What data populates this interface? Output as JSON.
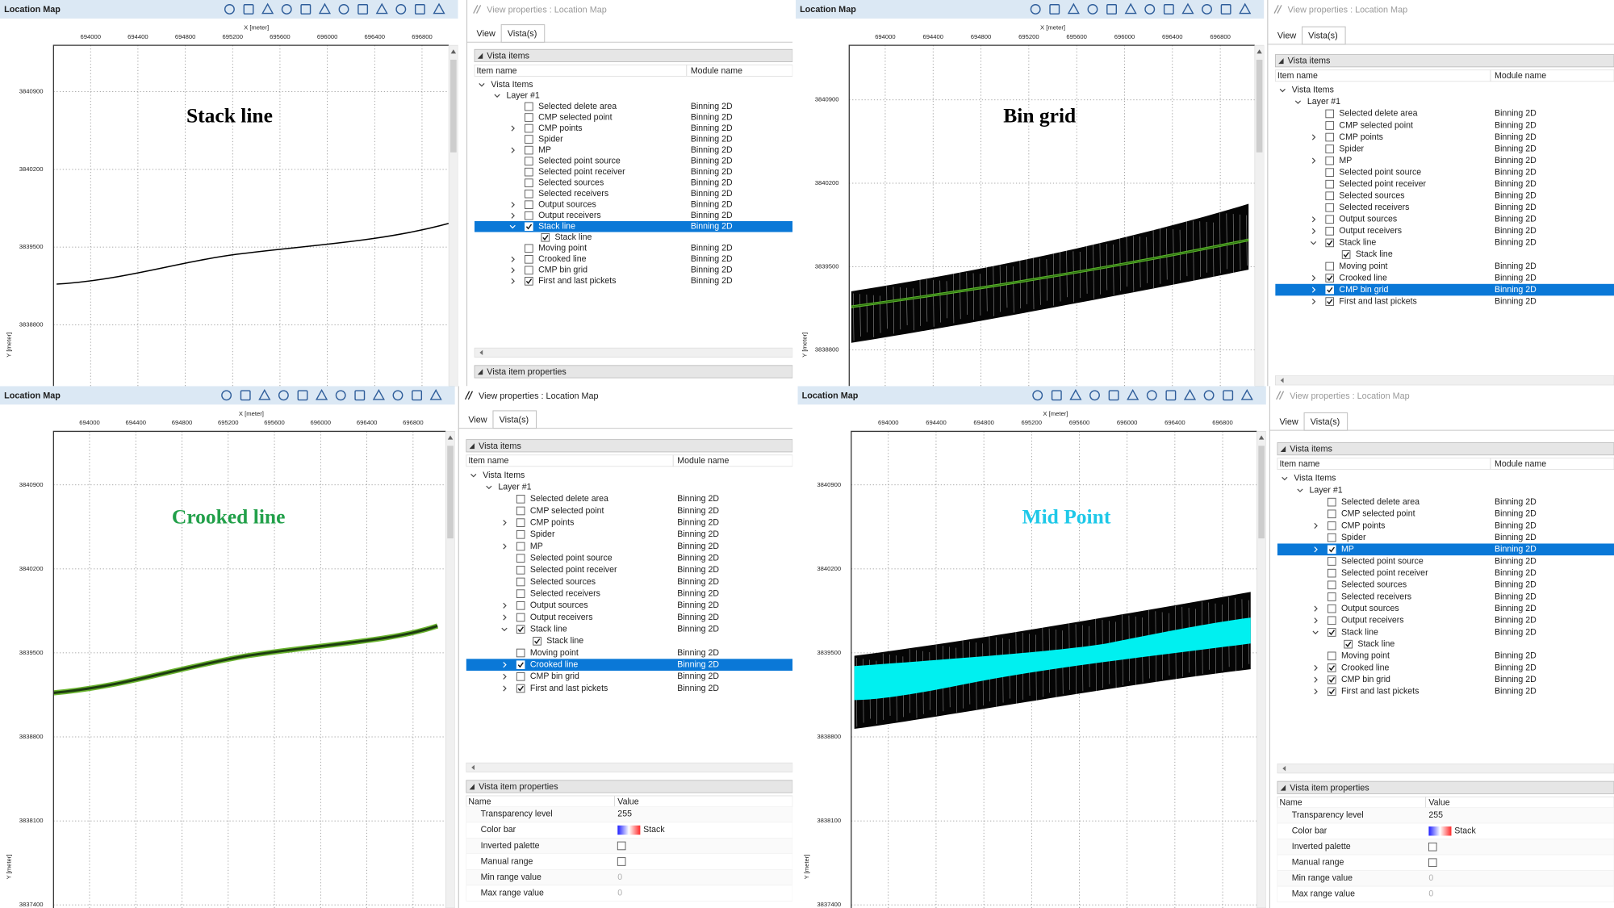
{
  "panels": [
    {
      "map": {
        "title": "Location Map",
        "x_label": "X [meter]",
        "y_label": "Y [meter]",
        "x_ticks": [
          694000,
          694400,
          694800,
          695200,
          695600,
          696000,
          696400,
          696800
        ],
        "y_ticks": [
          3840900,
          3840200,
          3839500,
          3838800
        ],
        "overlay_text": "Stack line",
        "overlay_color": "#000000"
      },
      "properties": {
        "title": "View properties : Location Map",
        "active": false,
        "tabs": [
          "View",
          "Vista(s)"
        ],
        "active_tab": 1,
        "section": "Vista items",
        "columns": [
          "Item name",
          "Module name"
        ],
        "tree": [
          {
            "name": "Vista Items",
            "level": 0,
            "expander": "open"
          },
          {
            "name": "Layer #1",
            "level": 1,
            "expander": "open"
          },
          {
            "name": "Selected delete area",
            "module": "Binning 2D",
            "level": 2,
            "checked": false
          },
          {
            "name": "CMP selected point",
            "module": "Binning 2D",
            "level": 2,
            "checked": false
          },
          {
            "name": "CMP points",
            "module": "Binning 2D",
            "level": 2,
            "checked": false,
            "expander": "closed"
          },
          {
            "name": "Spider",
            "module": "Binning 2D",
            "level": 2,
            "checked": false
          },
          {
            "name": "MP",
            "module": "Binning 2D",
            "level": 2,
            "checked": false,
            "expander": "closed"
          },
          {
            "name": "Selected point source",
            "module": "Binning 2D",
            "level": 2,
            "checked": false
          },
          {
            "name": "Selected point receiver",
            "module": "Binning 2D",
            "level": 2,
            "checked": false
          },
          {
            "name": "Selected sources",
            "module": "Binning 2D",
            "level": 2,
            "checked": false
          },
          {
            "name": "Selected receivers",
            "module": "Binning 2D",
            "level": 2,
            "checked": false
          },
          {
            "name": "Output sources",
            "module": "Binning 2D",
            "level": 2,
            "checked": false,
            "expander": "closed"
          },
          {
            "name": "Output receivers",
            "module": "Binning 2D",
            "level": 2,
            "checked": false,
            "expander": "closed"
          },
          {
            "name": "Stack line",
            "module": "Binning 2D",
            "level": 2,
            "checked": true,
            "expander": "open",
            "selected": true
          },
          {
            "name": "Stack line",
            "level": 3,
            "checked": true
          },
          {
            "name": "Moving point",
            "module": "Binning 2D",
            "level": 2,
            "checked": false
          },
          {
            "name": "Crooked line",
            "module": "Binning 2D",
            "level": 2,
            "checked": false,
            "expander": "closed"
          },
          {
            "name": "CMP bin grid",
            "module": "Binning 2D",
            "level": 2,
            "checked": false,
            "expander": "closed"
          },
          {
            "name": "First and last pickets",
            "module": "Binning 2D",
            "level": 2,
            "checked": true,
            "expander": "closed"
          }
        ],
        "item_section": "Vista item properties"
      }
    },
    {
      "map": {
        "title": "Location Map",
        "x_label": "X [meter]",
        "y_label": "Y [meter]",
        "x_ticks": [
          694000,
          694400,
          694800,
          695200,
          695600,
          696000,
          696400,
          696800
        ],
        "y_ticks": [
          3840900,
          3840200,
          3839500,
          3838800
        ],
        "overlay_text": "Bin grid",
        "overlay_color": "#000000"
      },
      "properties": {
        "title": "View properties : Location Map",
        "active": false,
        "tabs": [
          "View",
          "Vista(s)"
        ],
        "active_tab": 1,
        "section": "Vista items",
        "columns": [
          "Item name",
          "Module name"
        ],
        "tree": [
          {
            "name": "Vista Items",
            "level": 0,
            "expander": "open"
          },
          {
            "name": "Layer #1",
            "level": 1,
            "expander": "open"
          },
          {
            "name": "Selected delete area",
            "module": "Binning 2D",
            "level": 2,
            "checked": false
          },
          {
            "name": "CMP selected point",
            "module": "Binning 2D",
            "level": 2,
            "checked": false
          },
          {
            "name": "CMP points",
            "module": "Binning 2D",
            "level": 2,
            "checked": false,
            "expander": "closed"
          },
          {
            "name": "Spider",
            "module": "Binning 2D",
            "level": 2,
            "checked": false
          },
          {
            "name": "MP",
            "module": "Binning 2D",
            "level": 2,
            "checked": false,
            "expander": "closed"
          },
          {
            "name": "Selected point source",
            "module": "Binning 2D",
            "level": 2,
            "checked": false
          },
          {
            "name": "Selected point receiver",
            "module": "Binning 2D",
            "level": 2,
            "checked": false
          },
          {
            "name": "Selected sources",
            "module": "Binning 2D",
            "level": 2,
            "checked": false
          },
          {
            "name": "Selected receivers",
            "module": "Binning 2D",
            "level": 2,
            "checked": false
          },
          {
            "name": "Output sources",
            "module": "Binning 2D",
            "level": 2,
            "checked": false,
            "expander": "closed"
          },
          {
            "name": "Output receivers",
            "module": "Binning 2D",
            "level": 2,
            "checked": false,
            "expander": "closed"
          },
          {
            "name": "Stack line",
            "module": "Binning 2D",
            "level": 2,
            "checked": true,
            "expander": "open"
          },
          {
            "name": "Stack line",
            "level": 3,
            "checked": true
          },
          {
            "name": "Moving point",
            "module": "Binning 2D",
            "level": 2,
            "checked": false
          },
          {
            "name": "Crooked line",
            "module": "Binning 2D",
            "level": 2,
            "checked": true,
            "expander": "closed"
          },
          {
            "name": "CMP bin grid",
            "module": "Binning 2D",
            "level": 2,
            "checked": true,
            "expander": "closed",
            "selected": true
          },
          {
            "name": "First and last pickets",
            "module": "Binning 2D",
            "level": 2,
            "checked": true,
            "expander": "closed"
          }
        ]
      }
    },
    {
      "map": {
        "title": "Location Map",
        "x_label": "X [meter]",
        "y_label": "Y [meter]",
        "x_ticks": [
          694000,
          694400,
          694800,
          695200,
          695600,
          696000,
          696400,
          696800
        ],
        "y_ticks": [
          3840900,
          3840200,
          3839500,
          3838800,
          3838100,
          3837400
        ],
        "overlay_text": "Crooked  line",
        "overlay_color": "#22a04a"
      },
      "properties": {
        "title": "View properties : Location Map",
        "active": true,
        "tabs": [
          "View",
          "Vista(s)"
        ],
        "active_tab": 1,
        "section": "Vista items",
        "columns": [
          "Item name",
          "Module name"
        ],
        "tree": [
          {
            "name": "Vista Items",
            "level": 0,
            "expander": "open"
          },
          {
            "name": "Layer #1",
            "level": 1,
            "expander": "open"
          },
          {
            "name": "Selected delete area",
            "module": "Binning 2D",
            "level": 2,
            "checked": false
          },
          {
            "name": "CMP selected point",
            "module": "Binning 2D",
            "level": 2,
            "checked": false
          },
          {
            "name": "CMP points",
            "module": "Binning 2D",
            "level": 2,
            "checked": false,
            "expander": "closed"
          },
          {
            "name": "Spider",
            "module": "Binning 2D",
            "level": 2,
            "checked": false
          },
          {
            "name": "MP",
            "module": "Binning 2D",
            "level": 2,
            "checked": false,
            "expander": "closed"
          },
          {
            "name": "Selected point source",
            "module": "Binning 2D",
            "level": 2,
            "checked": false
          },
          {
            "name": "Selected point receiver",
            "module": "Binning 2D",
            "level": 2,
            "checked": false
          },
          {
            "name": "Selected sources",
            "module": "Binning 2D",
            "level": 2,
            "checked": false
          },
          {
            "name": "Selected receivers",
            "module": "Binning 2D",
            "level": 2,
            "checked": false
          },
          {
            "name": "Output sources",
            "module": "Binning 2D",
            "level": 2,
            "checked": false,
            "expander": "closed"
          },
          {
            "name": "Output receivers",
            "module": "Binning 2D",
            "level": 2,
            "checked": false,
            "expander": "closed"
          },
          {
            "name": "Stack line",
            "module": "Binning 2D",
            "level": 2,
            "checked": true,
            "expander": "open"
          },
          {
            "name": "Stack line",
            "level": 3,
            "checked": true
          },
          {
            "name": "Moving point",
            "module": "Binning 2D",
            "level": 2,
            "checked": false
          },
          {
            "name": "Crooked line",
            "module": "Binning 2D",
            "level": 2,
            "checked": true,
            "expander": "closed",
            "selected": true
          },
          {
            "name": "CMP bin grid",
            "module": "Binning 2D",
            "level": 2,
            "checked": false,
            "expander": "closed"
          },
          {
            "name": "First and last pickets",
            "module": "Binning 2D",
            "level": 2,
            "checked": true,
            "expander": "closed"
          }
        ],
        "item_section": "Vista item properties",
        "item_columns": [
          "Name",
          "Value"
        ],
        "item_rows": [
          {
            "name": "Transparency level",
            "value": 255
          },
          {
            "name": "Color bar",
            "value": "Stack",
            "swatch": [
              "#1f1fff",
              "#ffffff",
              "#ff2a2a"
            ]
          },
          {
            "name": "Inverted palette",
            "checkbox": false
          },
          {
            "name": "Manual range",
            "checkbox": false
          },
          {
            "name": "Min range value",
            "value": 0,
            "disabled": true
          },
          {
            "name": "Max range value",
            "value": 0,
            "disabled": true
          }
        ]
      }
    },
    {
      "map": {
        "title": "Location Map",
        "x_label": "X [meter]",
        "y_label": "Y [meter]",
        "x_ticks": [
          694000,
          694400,
          694800,
          695200,
          695600,
          696000,
          696400,
          696800
        ],
        "y_ticks": [
          3840900,
          3840200,
          3839500,
          3838800,
          3838100,
          3837400
        ],
        "overlay_text": "Mid Point",
        "overlay_color": "#1ec8e8"
      },
      "properties": {
        "title": "View properties : Location Map",
        "active": false,
        "tabs": [
          "View",
          "Vista(s)"
        ],
        "active_tab": 1,
        "section": "Vista items",
        "columns": [
          "Item name",
          "Module name"
        ],
        "tree": [
          {
            "name": "Vista Items",
            "level": 0,
            "expander": "open"
          },
          {
            "name": "Layer #1",
            "level": 1,
            "expander": "open"
          },
          {
            "name": "Selected delete area",
            "module": "Binning 2D",
            "level": 2,
            "checked": false
          },
          {
            "name": "CMP selected point",
            "module": "Binning 2D",
            "level": 2,
            "checked": false
          },
          {
            "name": "CMP points",
            "module": "Binning 2D",
            "level": 2,
            "checked": false,
            "expander": "closed"
          },
          {
            "name": "Spider",
            "module": "Binning 2D",
            "level": 2,
            "checked": false
          },
          {
            "name": "MP",
            "module": "Binning 2D",
            "level": 2,
            "checked": true,
            "expander": "closed",
            "selected": true
          },
          {
            "name": "Selected point source",
            "module": "Binning 2D",
            "level": 2,
            "checked": false
          },
          {
            "name": "Selected point receiver",
            "module": "Binning 2D",
            "level": 2,
            "checked": false
          },
          {
            "name": "Selected sources",
            "module": "Binning 2D",
            "level": 2,
            "checked": false
          },
          {
            "name": "Selected receivers",
            "module": "Binning 2D",
            "level": 2,
            "checked": false
          },
          {
            "name": "Output sources",
            "module": "Binning 2D",
            "level": 2,
            "checked": false,
            "expander": "closed"
          },
          {
            "name": "Output receivers",
            "module": "Binning 2D",
            "level": 2,
            "checked": false,
            "expander": "closed"
          },
          {
            "name": "Stack line",
            "module": "Binning 2D",
            "level": 2,
            "checked": true,
            "expander": "open"
          },
          {
            "name": "Stack line",
            "level": 3,
            "checked": true
          },
          {
            "name": "Moving point",
            "module": "Binning 2D",
            "level": 2,
            "checked": false
          },
          {
            "name": "Crooked line",
            "module": "Binning 2D",
            "level": 2,
            "checked": true,
            "expander": "closed"
          },
          {
            "name": "CMP bin grid",
            "module": "Binning 2D",
            "level": 2,
            "checked": true,
            "expander": "closed"
          },
          {
            "name": "First and last pickets",
            "module": "Binning 2D",
            "level": 2,
            "checked": true,
            "expander": "closed"
          }
        ],
        "item_section": "Vista item properties",
        "item_columns": [
          "Name",
          "Value"
        ],
        "item_rows": [
          {
            "name": "Transparency level",
            "value": 255
          },
          {
            "name": "Color bar",
            "value": "Stack",
            "swatch": [
              "#1f1fff",
              "#ffffff",
              "#ff2a2a"
            ]
          },
          {
            "name": "Inverted palette",
            "checkbox": false
          },
          {
            "name": "Manual range",
            "checkbox": false
          },
          {
            "name": "Min range value",
            "value": 0,
            "disabled": true
          },
          {
            "name": "Max range value",
            "value": 0,
            "disabled": true
          }
        ]
      }
    }
  ]
}
